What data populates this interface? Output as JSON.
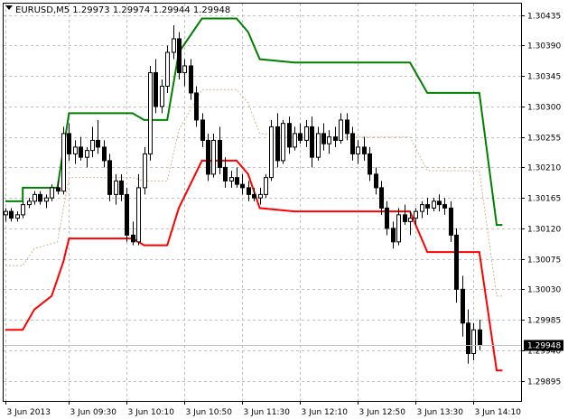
{
  "header": {
    "symbol": "EURUSD,M5",
    "ohlc": "1.29973 1.29974 1.29944 1.29948",
    "full": "EURUSD,M5  1.29973 1.29974 1.29944 1.29948"
  },
  "colors": {
    "background": "#ffffff",
    "grid": "#c0c0c0",
    "frame": "#000000",
    "candle": "#000000",
    "upper_channel": "#008000",
    "lower_channel": "#ff0000",
    "middle_line": "#d2b48c",
    "current_price_label": "#000000"
  },
  "current_price": {
    "label": "1.29948",
    "value": 1.29948
  },
  "chart_data": {
    "type": "candlestick",
    "ylim": [
      1.29865,
      1.30452
    ],
    "y_ticks": [
      "1.30435",
      "1.30390",
      "1.30345",
      "1.30300",
      "1.30255",
      "1.30210",
      "1.30165",
      "1.30120",
      "1.30075",
      "1.30030",
      "1.29985",
      "1.29940",
      "1.29895"
    ],
    "x_ticks": [
      {
        "label": "3 Jun 2013",
        "index": 0
      },
      {
        "label": "3 Jun 09:30",
        "index": 11
      },
      {
        "label": "3 Jun 10:10",
        "index": 21
      },
      {
        "label": "3 Jun 10:50",
        "index": 31
      },
      {
        "label": "3 Jun 11:30",
        "index": 41
      },
      {
        "label": "3 Jun 12:10",
        "index": 51
      },
      {
        "label": "3 Jun 12:50",
        "index": 61
      },
      {
        "label": "3 Jun 13:30",
        "index": 71
      },
      {
        "label": "3 Jun 14:10",
        "index": 81
      }
    ],
    "candles": [
      [
        1.3014,
        1.3015,
        1.3013,
        1.30145
      ],
      [
        1.30145,
        1.3015,
        1.3013,
        1.30135
      ],
      [
        1.30135,
        1.30145,
        1.3013,
        1.3014
      ],
      [
        1.3014,
        1.3016,
        1.30135,
        1.30155
      ],
      [
        1.30155,
        1.30165,
        1.3015,
        1.3016
      ],
      [
        1.3016,
        1.30175,
        1.30155,
        1.3017
      ],
      [
        1.3017,
        1.30175,
        1.30155,
        1.3016
      ],
      [
        1.3016,
        1.3017,
        1.3015,
        1.30165
      ],
      [
        1.30165,
        1.30185,
        1.3016,
        1.3018
      ],
      [
        1.3018,
        1.3019,
        1.3017,
        1.30175
      ],
      [
        1.30175,
        1.3027,
        1.3017,
        1.3026
      ],
      [
        1.3026,
        1.30275,
        1.3022,
        1.3023
      ],
      [
        1.3023,
        1.3025,
        1.30215,
        1.3024
      ],
      [
        1.3024,
        1.30255,
        1.3022,
        1.30225
      ],
      [
        1.30225,
        1.3024,
        1.3021,
        1.30235
      ],
      [
        1.30235,
        1.3027,
        1.30225,
        1.3025
      ],
      [
        1.3025,
        1.3028,
        1.3023,
        1.3024
      ],
      [
        1.3024,
        1.3025,
        1.3021,
        1.3022
      ],
      [
        1.3022,
        1.3023,
        1.3016,
        1.3017
      ],
      [
        1.3017,
        1.302,
        1.30155,
        1.3019
      ],
      [
        1.3019,
        1.302,
        1.3016,
        1.3017
      ],
      [
        1.3017,
        1.3018,
        1.301,
        1.3011
      ],
      [
        1.3011,
        1.3013,
        1.30095,
        1.301
      ],
      [
        1.301,
        1.302,
        1.30095,
        1.3018
      ],
      [
        1.3018,
        1.3024,
        1.3017,
        1.3023
      ],
      [
        1.3023,
        1.3036,
        1.3022,
        1.3035
      ],
      [
        1.3035,
        1.3037,
        1.3029,
        1.303
      ],
      [
        1.303,
        1.3034,
        1.3029,
        1.3033
      ],
      [
        1.3033,
        1.3039,
        1.3032,
        1.3038
      ],
      [
        1.3038,
        1.3042,
        1.3037,
        1.304
      ],
      [
        1.304,
        1.3041,
        1.3034,
        1.3035
      ],
      [
        1.3035,
        1.3037,
        1.3033,
        1.3036
      ],
      [
        1.3036,
        1.3037,
        1.3031,
        1.3032
      ],
      [
        1.3032,
        1.3033,
        1.3027,
        1.3028
      ],
      [
        1.3028,
        1.3029,
        1.3024,
        1.3025
      ],
      [
        1.3025,
        1.3026,
        1.3019,
        1.302
      ],
      [
        1.302,
        1.3026,
        1.30195,
        1.3025
      ],
      [
        1.3025,
        1.3027,
        1.302,
        1.3021
      ],
      [
        1.3021,
        1.30225,
        1.3018,
        1.3019
      ],
      [
        1.3019,
        1.30205,
        1.3018,
        1.30195
      ],
      [
        1.30195,
        1.3021,
        1.3018,
        1.30185
      ],
      [
        1.30185,
        1.302,
        1.3017,
        1.3018
      ],
      [
        1.3018,
        1.3019,
        1.3016,
        1.3017
      ],
      [
        1.3017,
        1.3018,
        1.3016,
        1.30165
      ],
      [
        1.30165,
        1.3018,
        1.30155,
        1.3017
      ],
      [
        1.3017,
        1.302,
        1.30165,
        1.30195
      ],
      [
        1.30195,
        1.3028,
        1.3019,
        1.3027
      ],
      [
        1.3027,
        1.3029,
        1.3021,
        1.3022
      ],
      [
        1.3022,
        1.3028,
        1.30215,
        1.30275
      ],
      [
        1.30275,
        1.30285,
        1.3023,
        1.3024
      ],
      [
        1.3024,
        1.3027,
        1.30235,
        1.3026
      ],
      [
        1.3026,
        1.30275,
        1.30245,
        1.3025
      ],
      [
        1.3025,
        1.3028,
        1.3024,
        1.3027
      ],
      [
        1.3027,
        1.30285,
        1.3021,
        1.30225
      ],
      [
        1.30225,
        1.3027,
        1.3022,
        1.3026
      ],
      [
        1.3026,
        1.30275,
        1.30235,
        1.30245
      ],
      [
        1.30245,
        1.30265,
        1.3023,
        1.30255
      ],
      [
        1.30255,
        1.3027,
        1.3024,
        1.3025
      ],
      [
        1.3025,
        1.3029,
        1.30245,
        1.3028
      ],
      [
        1.3028,
        1.3029,
        1.3025,
        1.3026
      ],
      [
        1.3026,
        1.3027,
        1.3022,
        1.3023
      ],
      [
        1.3023,
        1.3025,
        1.30215,
        1.3024
      ],
      [
        1.3024,
        1.30255,
        1.3022,
        1.3023
      ],
      [
        1.3023,
        1.3024,
        1.3019,
        1.302
      ],
      [
        1.302,
        1.3021,
        1.3017,
        1.3018
      ],
      [
        1.3018,
        1.3019,
        1.3014,
        1.3015
      ],
      [
        1.3015,
        1.3016,
        1.3011,
        1.3012
      ],
      [
        1.3012,
        1.3013,
        1.3009,
        1.301
      ],
      [
        1.301,
        1.3015,
        1.30095,
        1.3014
      ],
      [
        1.3014,
        1.30155,
        1.30125,
        1.3013
      ],
      [
        1.3013,
        1.30145,
        1.3011,
        1.30135
      ],
      [
        1.30135,
        1.3015,
        1.30125,
        1.30145
      ],
      [
        1.30145,
        1.3016,
        1.30135,
        1.30155
      ],
      [
        1.30155,
        1.30165,
        1.3014,
        1.3015
      ],
      [
        1.3015,
        1.30165,
        1.30145,
        1.3016
      ],
      [
        1.3016,
        1.3017,
        1.30145,
        1.30155
      ],
      [
        1.30155,
        1.30165,
        1.3014,
        1.3015
      ],
      [
        1.3015,
        1.3016,
        1.301,
        1.3011
      ],
      [
        1.3011,
        1.3012,
        1.3001,
        1.3003
      ],
      [
        1.3003,
        1.3005,
        1.2996,
        1.2998
      ],
      [
        1.2998,
        1.3,
        1.2992,
        1.29935
      ],
      [
        1.29935,
        1.2998,
        1.29925,
        1.2997
      ],
      [
        1.2997,
        1.29985,
        1.2994,
        1.29948
      ]
    ],
    "upper_channel": [
      [
        0,
        1.3016
      ],
      [
        3,
        1.3016
      ],
      [
        3,
        1.3018
      ],
      [
        9,
        1.3018
      ],
      [
        11,
        1.3029
      ],
      [
        22,
        1.3029
      ],
      [
        24,
        1.3028
      ],
      [
        28,
        1.3028
      ],
      [
        30,
        1.3038
      ],
      [
        34,
        1.3043
      ],
      [
        40,
        1.3043
      ],
      [
        42,
        1.3041
      ],
      [
        44,
        1.3037
      ],
      [
        50,
        1.30365
      ],
      [
        70,
        1.30365
      ],
      [
        73,
        1.3032
      ],
      [
        82,
        1.3032
      ],
      [
        85,
        1.30125
      ],
      [
        86,
        1.30125
      ]
    ],
    "lower_channel": [
      [
        0,
        1.2997
      ],
      [
        3,
        1.2997
      ],
      [
        5,
        1.3
      ],
      [
        8,
        1.3002
      ],
      [
        10,
        1.3007
      ],
      [
        11,
        1.30105
      ],
      [
        22,
        1.30105
      ],
      [
        24,
        1.30095
      ],
      [
        28,
        1.30095
      ],
      [
        30,
        1.3015
      ],
      [
        34,
        1.3022
      ],
      [
        40,
        1.3022
      ],
      [
        42,
        1.302
      ],
      [
        44,
        1.3015
      ],
      [
        50,
        1.30145
      ],
      [
        70,
        1.30145
      ],
      [
        73,
        1.30085
      ],
      [
        82,
        1.30085
      ],
      [
        85,
        1.2991
      ],
      [
        86,
        1.2991
      ]
    ],
    "middle_line": [
      [
        0,
        1.30065
      ],
      [
        3,
        1.30065
      ],
      [
        5,
        1.3009
      ],
      [
        9,
        1.301
      ],
      [
        11,
        1.30195
      ],
      [
        22,
        1.30195
      ],
      [
        24,
        1.3019
      ],
      [
        28,
        1.3019
      ],
      [
        30,
        1.30265
      ],
      [
        34,
        1.30325
      ],
      [
        40,
        1.30325
      ],
      [
        42,
        1.30305
      ],
      [
        44,
        1.3026
      ],
      [
        50,
        1.30255
      ],
      [
        70,
        1.30255
      ],
      [
        73,
        1.30205
      ],
      [
        82,
        1.30205
      ],
      [
        85,
        1.3002
      ],
      [
        86,
        1.3002
      ]
    ]
  }
}
